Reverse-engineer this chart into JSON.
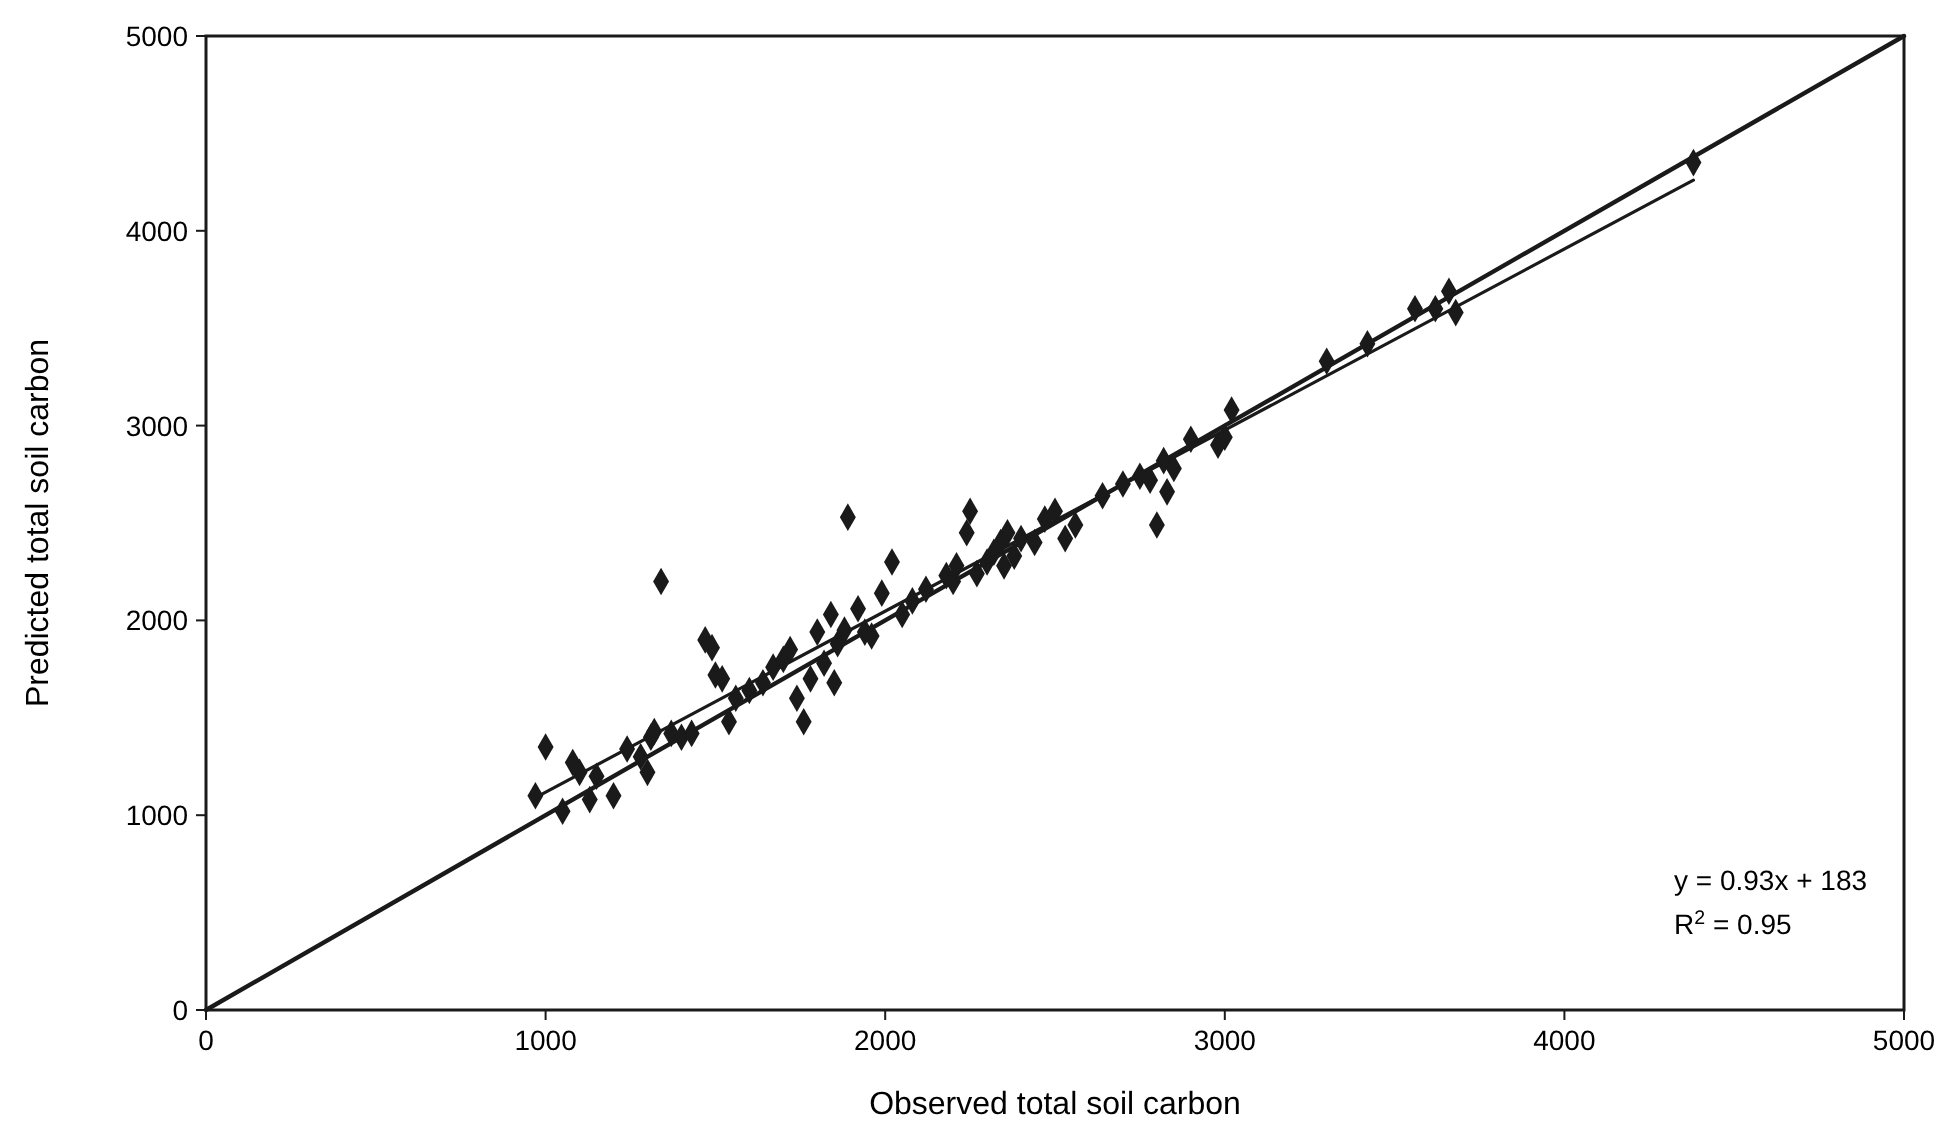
{
  "chart_data": {
    "type": "scatter",
    "xlabel": "Observed total soil carbon",
    "ylabel": "Predicted total soil carbon",
    "xlim": [
      0,
      5000
    ],
    "ylim": [
      0,
      5000
    ],
    "xticks": [
      0,
      1000,
      2000,
      3000,
      4000,
      5000
    ],
    "yticks": [
      0,
      1000,
      2000,
      3000,
      4000,
      5000
    ],
    "grid": false,
    "annotations": [
      "y = 0.93x + 183",
      "R$^{2}$ = 0.95"
    ],
    "series": [
      {
        "marker": "diamond",
        "color": "#1a1a1a",
        "x": [
          970,
          1000,
          1050,
          1080,
          1100,
          1130,
          1150,
          1200,
          1240,
          1280,
          1300,
          1310,
          1320,
          1340,
          1370,
          1400,
          1430,
          1470,
          1490,
          1500,
          1520,
          1540,
          1560,
          1600,
          1640,
          1670,
          1700,
          1720,
          1740,
          1760,
          1780,
          1800,
          1820,
          1840,
          1850,
          1860,
          1880,
          1890,
          1920,
          1940,
          1960,
          1990,
          2020,
          2050,
          2080,
          2120,
          2180,
          2200,
          2210,
          2240,
          2250,
          2270,
          2300,
          2320,
          2340,
          2350,
          2360,
          2380,
          2400,
          2440,
          2470,
          2500,
          2530,
          2560,
          2640,
          2700,
          2750,
          2780,
          2800,
          2820,
          2830,
          2850,
          2900,
          2980,
          3000,
          3020,
          3300,
          3420,
          3560,
          3620,
          3660,
          3680,
          4380
        ],
        "values": [
          1100,
          1350,
          1020,
          1270,
          1220,
          1080,
          1200,
          1100,
          1340,
          1300,
          1220,
          1400,
          1430,
          2200,
          1420,
          1400,
          1420,
          1900,
          1860,
          1720,
          1700,
          1480,
          1600,
          1640,
          1680,
          1760,
          1800,
          1850,
          1600,
          1480,
          1700,
          1940,
          1780,
          2030,
          1680,
          1880,
          1950,
          2530,
          2060,
          1940,
          1920,
          2140,
          2300,
          2030,
          2100,
          2160,
          2230,
          2200,
          2280,
          2450,
          2560,
          2240,
          2300,
          2350,
          2400,
          2280,
          2450,
          2330,
          2420,
          2400,
          2520,
          2560,
          2420,
          2490,
          2640,
          2700,
          2740,
          2720,
          2490,
          2820,
          2660,
          2780,
          2930,
          2900,
          2940,
          3080,
          3330,
          3420,
          3600,
          3600,
          3690,
          3580,
          4350
        ]
      },
      {
        "type": "line",
        "color": "#1a1a1a",
        "line_style": "solid",
        "marker": "none",
        "x": [
          970,
          4380
        ],
        "values": [
          1090,
          4260
        ]
      },
      {
        "type": "line",
        "color": "#1a1a1a",
        "line_style": "solid",
        "marker": "none",
        "x": [
          0,
          5000
        ],
        "values": [
          0,
          5000
        ]
      }
    ]
  }
}
